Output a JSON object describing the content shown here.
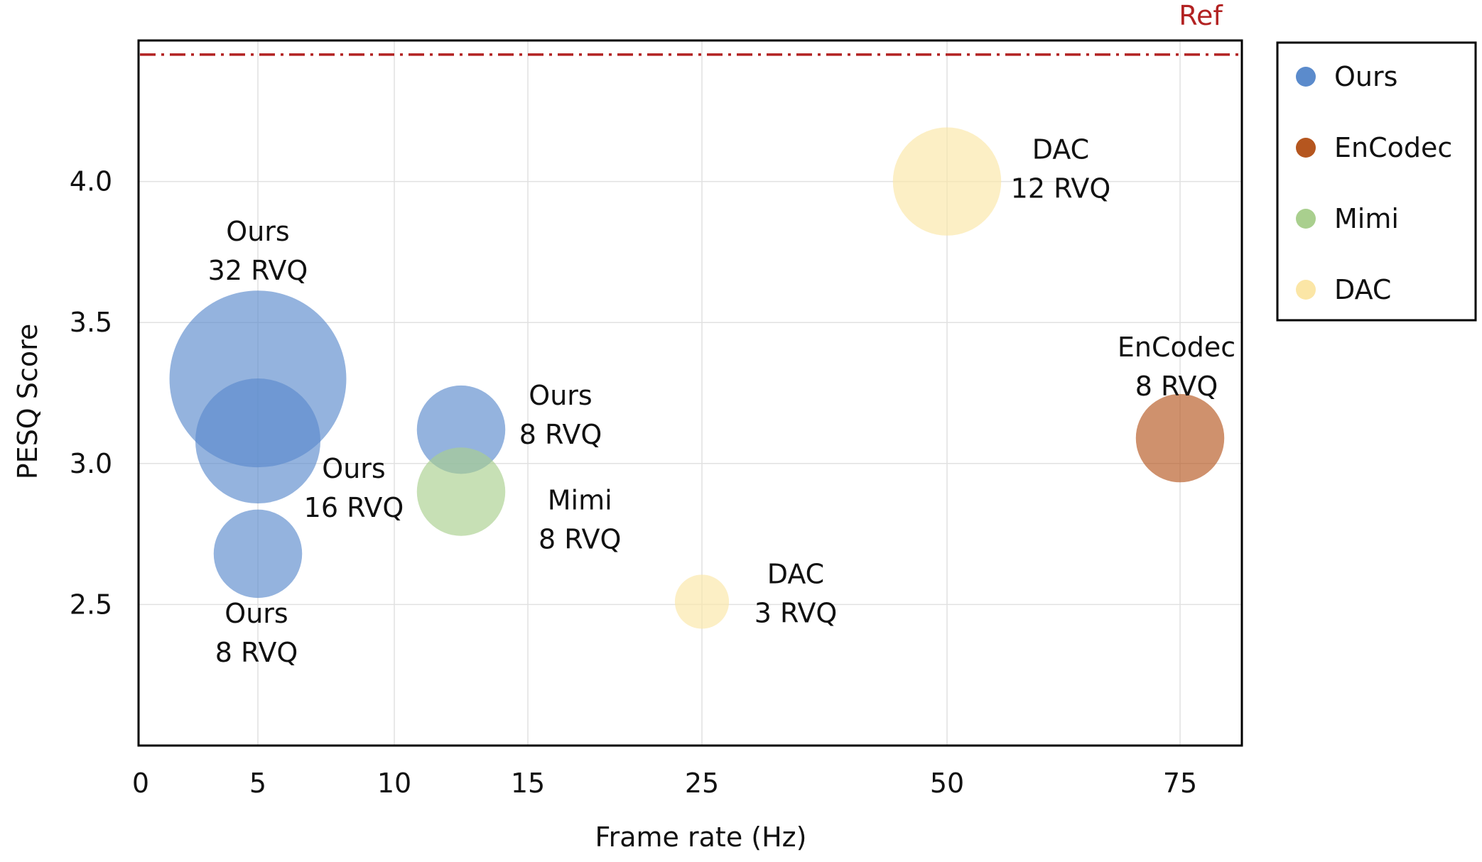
{
  "chart_data": {
    "type": "bubble",
    "title": "",
    "xlabel": "Frame rate (Hz)",
    "ylabel": "PESQ  Score",
    "x_scale": "categorical-ticks",
    "x_ticks": [
      0,
      5,
      10,
      15,
      25,
      50,
      75
    ],
    "y_ticks": [
      2.5,
      3.0,
      3.5,
      4.0
    ],
    "y_tick_labels": [
      "2.5",
      "3.0",
      "3.5",
      "4.0"
    ],
    "ylim": [
      2.0,
      4.5
    ],
    "grid": true,
    "reference": {
      "label": "Ref",
      "value": 4.45,
      "color": "#b22222"
    },
    "legend": {
      "placement": "outside-right",
      "entries": [
        {
          "name": "Ours",
          "color": "#5b8bcc"
        },
        {
          "name": "EnCodec",
          "color": "#b5561f"
        },
        {
          "name": "Mimi",
          "color": "#a9cf8e"
        },
        {
          "name": "DAC",
          "color": "#fbe6a6"
        }
      ]
    },
    "points": [
      {
        "series": "Ours",
        "x": 5,
        "y": 3.3,
        "size": 32,
        "label_line1": "Ours",
        "label_line2": "32 RVQ",
        "label_pos": "above"
      },
      {
        "series": "Ours",
        "x": 5,
        "y": 3.08,
        "size": 16,
        "label_line1": "Ours",
        "label_line2": "16 RVQ",
        "label_pos": "right-below"
      },
      {
        "series": "Ours",
        "x": 5,
        "y": 2.68,
        "size": 8,
        "label_line1": "Ours",
        "label_line2": "8 RVQ",
        "label_pos": "below"
      },
      {
        "series": "Ours",
        "x": 12.5,
        "y": 3.12,
        "size": 8,
        "label_line1": "Ours",
        "label_line2": "8 RVQ",
        "label_pos": "right"
      },
      {
        "series": "Mimi",
        "x": 12.5,
        "y": 2.9,
        "size": 8,
        "label_line1": "Mimi",
        "label_line2": "8 RVQ",
        "label_pos": "right-below"
      },
      {
        "series": "DAC",
        "x": 25,
        "y": 2.51,
        "size": 3,
        "label_line1": "DAC",
        "label_line2": "3 RVQ",
        "label_pos": "right"
      },
      {
        "series": "DAC",
        "x": 50,
        "y": 4.0,
        "size": 12,
        "label_line1": "DAC",
        "label_line2": "12 RVQ",
        "label_pos": "right"
      },
      {
        "series": "EnCodec",
        "x": 75,
        "y": 3.09,
        "size": 8,
        "label_line1": "EnCodec",
        "label_line2": "8 RVQ",
        "label_pos": "above"
      }
    ]
  }
}
